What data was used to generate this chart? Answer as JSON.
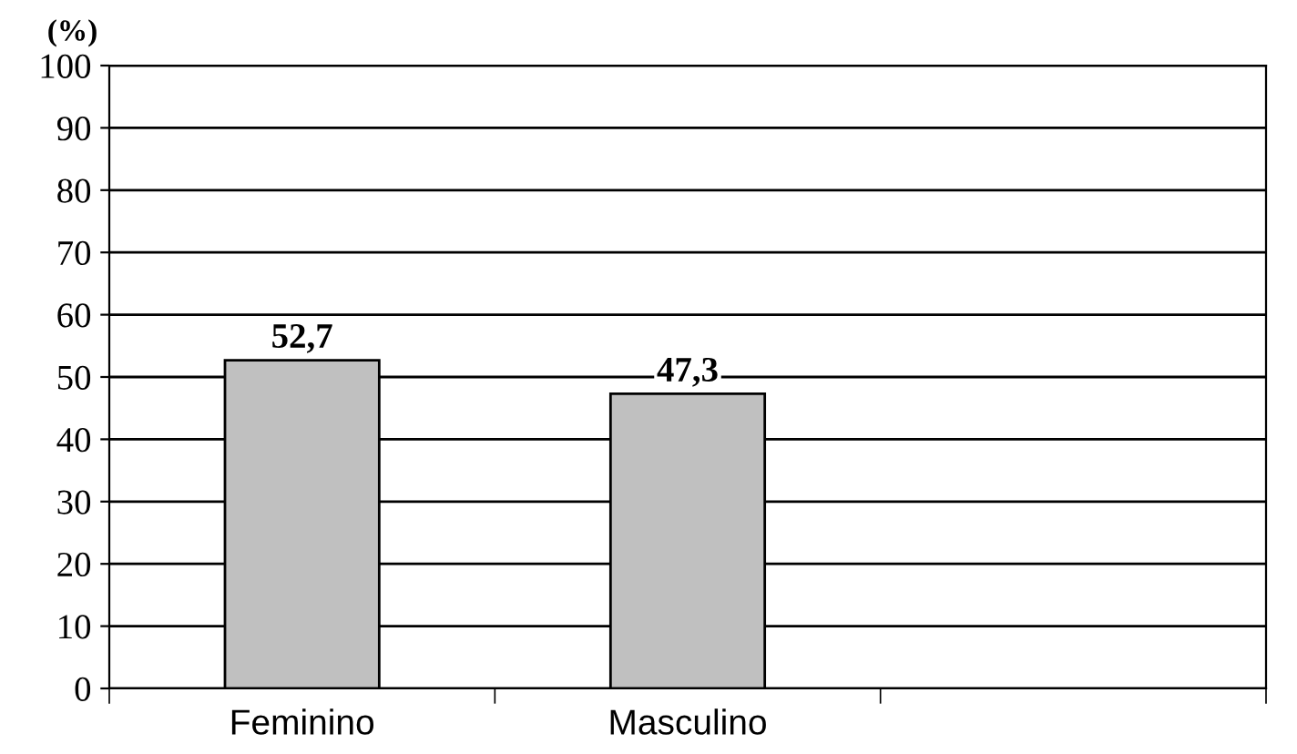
{
  "chart_data": {
    "type": "bar",
    "ylabel": "(%)",
    "categories": [
      "Feminino",
      "Masculino",
      null
    ],
    "values": [
      52.7,
      47.3,
      null
    ],
    "value_labels": [
      "52,7",
      "47,3",
      null
    ],
    "color": "#c0c0c0",
    "ylim": [
      0,
      100
    ],
    "yticks": [
      0,
      10,
      20,
      30,
      40,
      50,
      60,
      70,
      80,
      90,
      100
    ],
    "grid": "y"
  }
}
